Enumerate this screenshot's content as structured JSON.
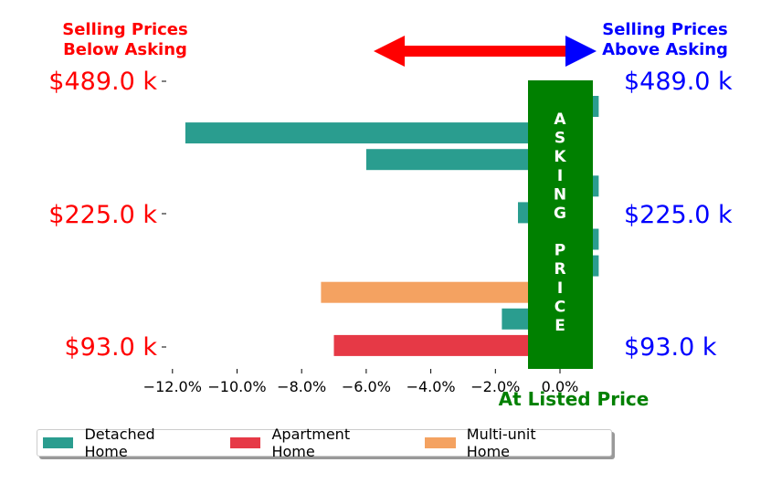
{
  "header": {
    "left_line1": "Selling Prices",
    "left_line2": "Below Asking",
    "right_line1": "Selling Prices",
    "right_line2": "Above Asking"
  },
  "price_labels": {
    "left": [
      "$489.0 k",
      "$225.0 k",
      "$93.0 k"
    ],
    "right": [
      "$489.0 k",
      "$225.0 k",
      "$93.0 k"
    ]
  },
  "asking_block_text": "ASKING PRICE",
  "at_listed_label": "At Listed Price",
  "colors": {
    "red_text": "#ff0000",
    "blue_text": "#0000ff",
    "green_block": "#008000",
    "detached": "#2a9d8f",
    "apartment": "#e63946",
    "multi": "#f4a261"
  },
  "legend": [
    {
      "label": "Detached Home",
      "color": "#2a9d8f"
    },
    {
      "label": "Apartment Home",
      "color": "#e63946"
    },
    {
      "label": "Multi-unit Home",
      "color": "#f4a261"
    }
  ],
  "chart_data": {
    "type": "bar",
    "orientation": "horizontal",
    "xlabel": "At Listed Price",
    "xlim": [
      -12.5,
      1.2
    ],
    "xticks": [
      -12,
      -10,
      -8,
      -6,
      -4,
      -2,
      0
    ],
    "xtick_labels": [
      "−12.0%",
      "−10.0%",
      "−8.0%",
      "−6.0%",
      "−4.0%",
      "−2.0%",
      "0.0%"
    ],
    "bars": [
      {
        "category": "Detached Home",
        "value": 1.2
      },
      {
        "category": "Detached Home",
        "value": -11.6
      },
      {
        "category": "Detached Home",
        "value": -6.0
      },
      {
        "category": "Detached Home",
        "value": 1.2
      },
      {
        "category": "Detached Home",
        "value": -1.3
      },
      {
        "category": "Detached Home",
        "value": 1.2
      },
      {
        "category": "Detached Home",
        "value": 1.2
      },
      {
        "category": "Multi-unit Home",
        "value": -7.4
      },
      {
        "category": "Detached Home",
        "value": -1.8
      },
      {
        "category": "Apartment Home",
        "value": -7.0
      }
    ]
  }
}
